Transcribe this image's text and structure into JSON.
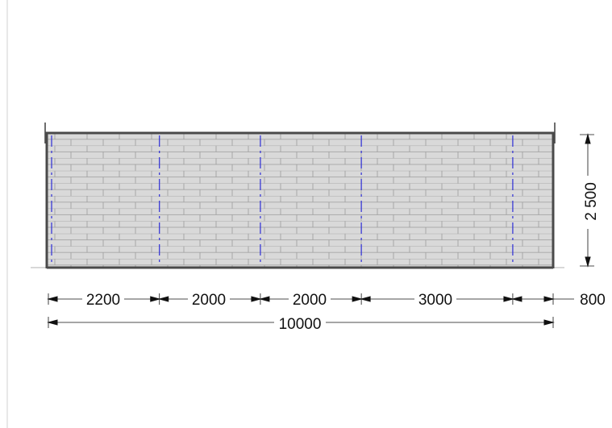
{
  "drawing": {
    "type": "wall elevation drawing",
    "colors": {
      "wall_fill": "#d9d9d9",
      "brick_lines": "#9a9a9a",
      "outline": "#4a4a4a",
      "post_marks": "#2d2dd6",
      "dimension_lines": "#111111"
    },
    "segments": [
      {
        "label": "2200",
        "length": 2200
      },
      {
        "label": "2000",
        "length": 2000
      },
      {
        "label": "2000",
        "length": 2000
      },
      {
        "label": "3000",
        "length": 3000
      },
      {
        "label": "800",
        "length": 800
      }
    ],
    "total": {
      "label": "10000",
      "length": 10000
    },
    "height": {
      "label": "2 500",
      "length": 2500
    }
  }
}
